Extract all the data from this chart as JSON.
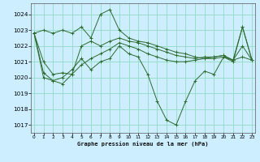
{
  "background_color": "#cceeff",
  "grid_color": "#99ddcc",
  "line_color": "#2d6a2d",
  "ylim": [
    1016.5,
    1024.7
  ],
  "xlim": [
    -0.3,
    23.3
  ],
  "yticks": [
    1017,
    1018,
    1019,
    1020,
    1021,
    1022,
    1023,
    1024
  ],
  "xticks": [
    0,
    1,
    2,
    3,
    4,
    5,
    6,
    7,
    8,
    9,
    10,
    11,
    12,
    13,
    14,
    15,
    16,
    17,
    18,
    19,
    20,
    21,
    22,
    23
  ],
  "xlabel": "Graphe pression niveau de la mer (hPa)",
  "series": [
    [
      1022.8,
      1023.0,
      1022.8,
      1023.0,
      1022.8,
      1023.2,
      1022.5,
      1024.0,
      1024.3,
      1023.0,
      1022.5,
      1022.3,
      1022.2,
      1022.0,
      1021.8,
      1021.6,
      1021.5,
      1021.3,
      1021.2,
      1021.2,
      1021.3,
      1021.1,
      1023.2,
      1021.1
    ],
    [
      1022.8,
      1021.0,
      1020.2,
      1020.3,
      1020.2,
      1022.0,
      1022.3,
      1022.0,
      1022.3,
      1022.5,
      1022.3,
      1022.2,
      1022.0,
      1021.8,
      1021.6,
      1021.4,
      1021.3,
      1021.2,
      1021.3,
      1021.3,
      1021.4,
      1021.1,
      1022.0,
      1021.1
    ],
    [
      1022.8,
      1020.3,
      1019.8,
      1019.6,
      1020.2,
      1020.8,
      1021.2,
      1021.5,
      1021.8,
      1022.2,
      1022.0,
      1021.8,
      1021.5,
      1021.3,
      1021.1,
      1021.0,
      1021.0,
      1021.1,
      1021.2,
      1021.3,
      1021.4,
      1021.1,
      1021.3,
      1021.1
    ],
    [
      1022.8,
      1020.0,
      1019.8,
      1020.0,
      1020.5,
      1021.2,
      1020.5,
      1021.0,
      1021.2,
      1022.0,
      1021.5,
      1021.3,
      1020.2,
      1018.5,
      1017.3,
      1017.0,
      1018.5,
      1019.8,
      1020.4,
      1020.2,
      1021.3,
      1021.0,
      1023.2,
      1021.1
    ]
  ]
}
